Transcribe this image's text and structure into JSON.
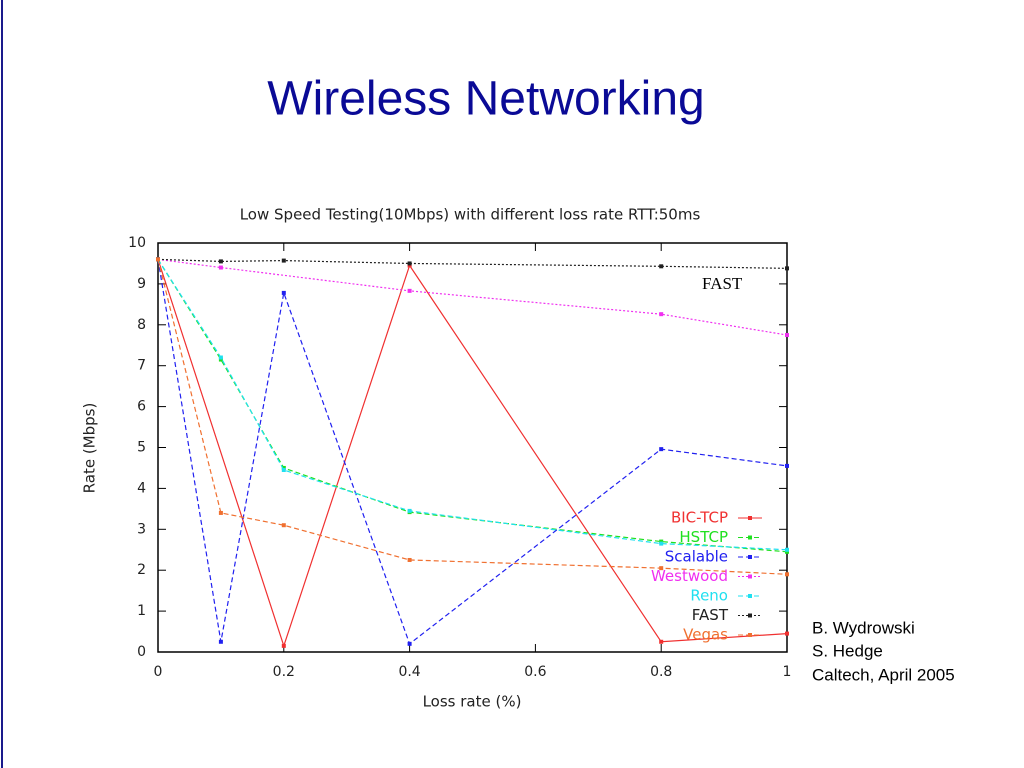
{
  "title": "Wireless Networking",
  "credits": [
    "B. Wydrowski",
    "S. Hedge",
    "Caltech, April 2005"
  ],
  "chart_data": {
    "type": "line",
    "title": "Low Speed Testing(10Mbps) with different loss rate RTT:50ms",
    "xlabel": "Loss rate (%)",
    "ylabel": "Rate (Mbps)",
    "xlim": [
      0,
      1
    ],
    "xticks": [
      0,
      0.2,
      0.4,
      0.6,
      0.8,
      1
    ],
    "ylim": [
      0,
      10
    ],
    "yticks": [
      0,
      1,
      2,
      3,
      4,
      5,
      6,
      7,
      8,
      9,
      10
    ],
    "legend": "lower right",
    "annotations": [
      "FAST"
    ],
    "series": [
      {
        "name": "BIC-TCP",
        "color": "#f03030",
        "style": "solid",
        "x": [
          0,
          0.2,
          0.4,
          0.8,
          1
        ],
        "values": [
          9.6,
          0.15,
          9.45,
          0.25,
          0.45
        ]
      },
      {
        "name": "HSTCP",
        "color": "#20e020",
        "style": "dashed",
        "x": [
          0,
          0.1,
          0.2,
          0.4,
          0.8,
          1
        ],
        "values": [
          9.6,
          7.15,
          4.5,
          3.42,
          2.7,
          2.45
        ]
      },
      {
        "name": "Scalable",
        "color": "#2020f0",
        "style": "dashed",
        "x": [
          0,
          0.1,
          0.2,
          0.4,
          0.8,
          1
        ],
        "values": [
          9.6,
          0.25,
          8.78,
          0.2,
          4.96,
          4.55
        ]
      },
      {
        "name": "Westwood",
        "color": "#f030f0",
        "style": "dotted",
        "x": [
          0,
          0.1,
          0.4,
          0.8,
          1
        ],
        "values": [
          9.6,
          9.4,
          8.83,
          8.26,
          7.75
        ]
      },
      {
        "name": "Reno",
        "color": "#20e0f0",
        "style": "dashed",
        "x": [
          0,
          0.1,
          0.2,
          0.4,
          0.8,
          1
        ],
        "values": [
          9.6,
          7.2,
          4.45,
          3.45,
          2.65,
          2.5
        ]
      },
      {
        "name": "FAST",
        "color": "#202020",
        "style": "dotted",
        "x": [
          0,
          0.1,
          0.2,
          0.4,
          0.8,
          1
        ],
        "values": [
          9.6,
          9.55,
          9.57,
          9.5,
          9.43,
          9.38
        ]
      },
      {
        "name": "Vegas",
        "color": "#f07030",
        "style": "dashed",
        "x": [
          0,
          0.1,
          0.2,
          0.4,
          0.8,
          1
        ],
        "values": [
          9.6,
          3.4,
          3.1,
          2.25,
          2.05,
          1.9
        ]
      }
    ]
  }
}
